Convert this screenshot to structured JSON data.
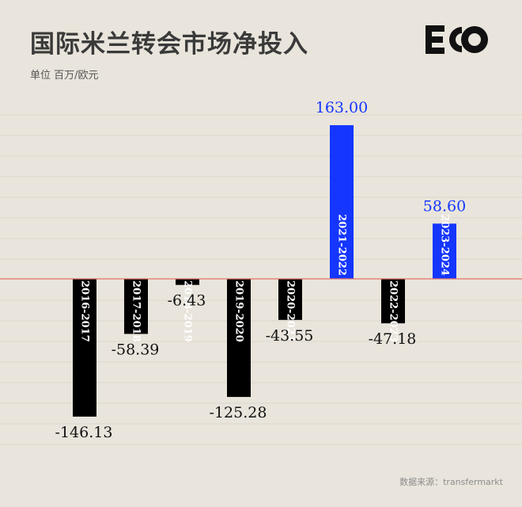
{
  "title": "国际米兰转会市场净投入",
  "unit_label": "单位  百万/欧元",
  "source": "数据来源：transfermarkt",
  "logo_text": "ECO",
  "colors": {
    "background": "#e9e5dc",
    "negative": "#000000",
    "positive": "#1436ff",
    "zero_line": "#e07468",
    "grid": "#ddd7cc"
  },
  "chart_data": {
    "type": "bar",
    "categories": [
      "2016-2017",
      "2017-2018",
      "2018-2019",
      "2019-2020",
      "2020-2021",
      "2021-2022",
      "2022-2023",
      "2023-2024"
    ],
    "values": [
      -146.13,
      -58.39,
      -6.43,
      -125.28,
      -43.55,
      163.0,
      -47.18,
      58.6
    ],
    "value_labels": [
      "-146.13",
      "-58.39",
      "-6.43",
      "-125.28",
      "-43.55",
      "163.00",
      "-47.18",
      "58.60"
    ],
    "ylim": [
      -150,
      170
    ],
    "grid": true,
    "legend": "none"
  }
}
